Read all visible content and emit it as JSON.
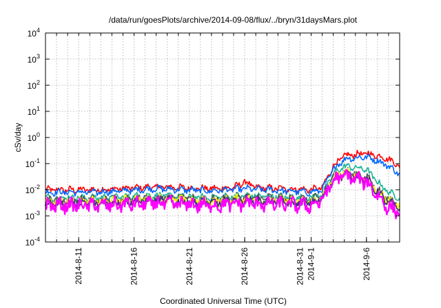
{
  "chart_data": {
    "type": "line",
    "title": "/data/run/goesPlots/archive/2014-09-08/flux/../bryn/31daysMars.plot",
    "xlabel": "Coordinated Universal Time (UTC)",
    "ylabel": "cSv/day",
    "yscale": "log",
    "ylim_exponents": [
      -4,
      4
    ],
    "xlim": [
      "2014-08-08",
      "2014-09-09"
    ],
    "grid": true,
    "x_ticks": [
      {
        "label": "2014-8-11",
        "date": "2014-08-11"
      },
      {
        "label": "2014-8-16",
        "date": "2014-08-16"
      },
      {
        "label": "2014-8-21",
        "date": "2014-08-21"
      },
      {
        "label": "2014-8-26",
        "date": "2014-08-26"
      },
      {
        "label": "2014-8-31",
        "date": "2014-08-31"
      },
      {
        "label": "2014-9-1",
        "date": "2014-09-01"
      },
      {
        "label": "2014-9-6",
        "date": "2014-09-06"
      }
    ],
    "y_ticks": [
      {
        "base": "10",
        "exp": "-4"
      },
      {
        "base": "10",
        "exp": "-3"
      },
      {
        "base": "10",
        "exp": "-2"
      },
      {
        "base": "10",
        "exp": "-1"
      },
      {
        "base": "10",
        "exp": "0"
      },
      {
        "base": "10",
        "exp": "1"
      },
      {
        "base": "10",
        "exp": "2"
      },
      {
        "base": "10",
        "exp": "3"
      },
      {
        "base": "10",
        "exp": "4"
      }
    ],
    "series": [
      {
        "color": "#ff0000",
        "x": [
          "2014-08-08",
          "2014-08-13",
          "2014-08-18",
          "2014-08-23",
          "2014-08-25",
          "2014-08-26",
          "2014-08-27",
          "2014-09-01",
          "2014-09-02",
          "2014-09-03",
          "2014-09-04",
          "2014-09-06",
          "2014-09-07",
          "2014-09-08",
          "2014-09-09"
        ],
        "y": [
          0.01,
          0.01,
          0.013,
          0.011,
          0.012,
          0.02,
          0.012,
          0.01,
          0.012,
          0.08,
          0.2,
          0.25,
          0.2,
          0.15,
          0.08
        ]
      },
      {
        "color": "#0066ff",
        "x": [
          "2014-08-08",
          "2014-08-13",
          "2014-08-18",
          "2014-08-23",
          "2014-08-26",
          "2014-09-01",
          "2014-09-02",
          "2014-09-03",
          "2014-09-04",
          "2014-09-06",
          "2014-09-07",
          "2014-09-08",
          "2014-09-09"
        ],
        "y": [
          0.008,
          0.008,
          0.011,
          0.009,
          0.011,
          0.008,
          0.01,
          0.06,
          0.15,
          0.18,
          0.13,
          0.08,
          0.04
        ]
      },
      {
        "color": "#1ab394",
        "x": [
          "2014-08-08",
          "2014-08-13",
          "2014-08-18",
          "2014-08-23",
          "2014-08-26",
          "2014-09-01",
          "2014-09-02",
          "2014-09-03",
          "2014-09-04",
          "2014-09-06",
          "2014-09-07",
          "2014-09-08",
          "2014-09-09"
        ],
        "y": [
          0.005,
          0.005,
          0.006,
          0.005,
          0.006,
          0.005,
          0.007,
          0.04,
          0.08,
          0.06,
          0.02,
          0.008,
          0.005
        ]
      },
      {
        "color": "#555555",
        "x": [
          "2014-08-08",
          "2014-08-13",
          "2014-08-18",
          "2014-08-23",
          "2014-08-26",
          "2014-09-01",
          "2014-09-02",
          "2014-09-03",
          "2014-09-04",
          "2014-09-06",
          "2014-09-07",
          "2014-09-08",
          "2014-09-09"
        ],
        "y": [
          0.004,
          0.004,
          0.005,
          0.004,
          0.005,
          0.004,
          0.006,
          0.03,
          0.05,
          0.03,
          0.01,
          0.004,
          0.003
        ]
      },
      {
        "color": "#ffff00",
        "x": [
          "2014-08-08",
          "2014-08-13",
          "2014-08-18",
          "2014-08-23",
          "2014-08-26",
          "2014-09-01",
          "2014-09-02",
          "2014-09-03",
          "2014-09-04",
          "2014-09-06",
          "2014-09-07",
          "2014-09-08",
          "2014-09-09"
        ],
        "y": [
          0.0035,
          0.0035,
          0.0045,
          0.0035,
          0.0045,
          0.0035,
          0.005,
          0.028,
          0.045,
          0.027,
          0.009,
          0.0035,
          0.0025
        ]
      },
      {
        "color": "#3b2c8a",
        "x": [
          "2014-08-08",
          "2014-08-13",
          "2014-08-18",
          "2014-08-23",
          "2014-08-26",
          "2014-09-01",
          "2014-09-02",
          "2014-09-03",
          "2014-09-04",
          "2014-09-06",
          "2014-09-07",
          "2014-09-08",
          "2014-09-09"
        ],
        "y": [
          0.003,
          0.003,
          0.004,
          0.003,
          0.004,
          0.003,
          0.0045,
          0.025,
          0.04,
          0.024,
          0.008,
          0.003,
          0.002
        ]
      },
      {
        "color": "#ff00ff",
        "x": [
          "2014-08-08",
          "2014-08-13",
          "2014-08-18",
          "2014-08-23",
          "2014-08-26",
          "2014-09-01",
          "2014-09-02",
          "2014-09-03",
          "2014-09-04",
          "2014-09-06",
          "2014-09-07",
          "2014-09-08",
          "2014-09-09"
        ],
        "y": [
          0.0025,
          0.0025,
          0.003,
          0.0025,
          0.003,
          0.0025,
          0.004,
          0.022,
          0.035,
          0.02,
          0.006,
          0.002,
          0.0015
        ]
      }
    ]
  }
}
